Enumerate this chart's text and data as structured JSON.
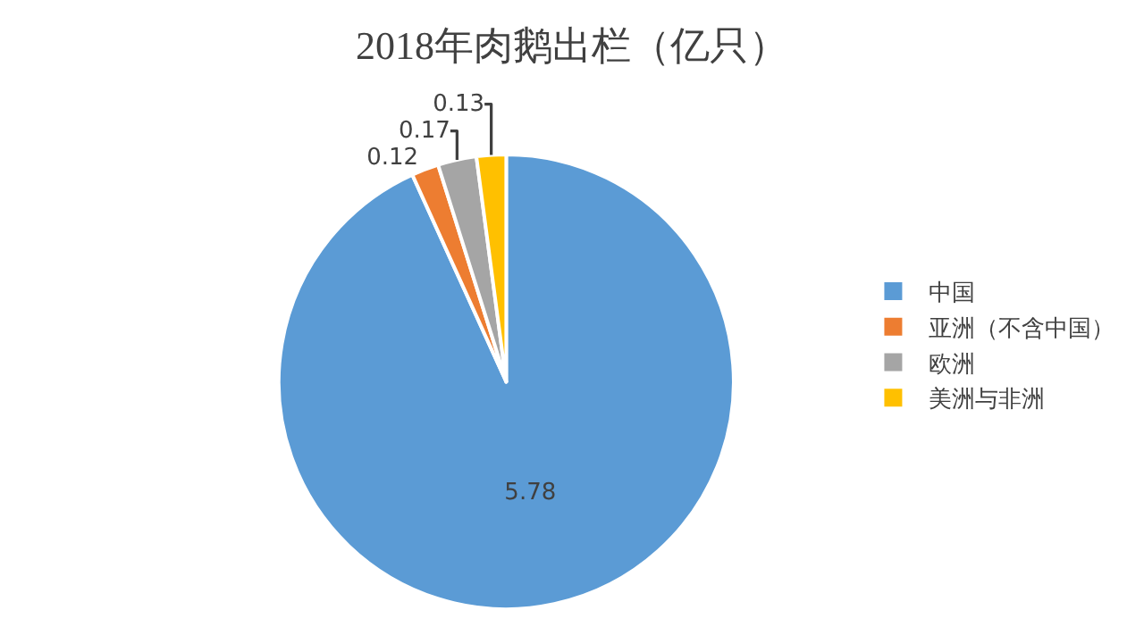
{
  "chart_data": {
    "type": "pie",
    "title": "2018年肉鹅出栏（亿只）",
    "categories": [
      "中国",
      "亚洲（不含中国）",
      "欧洲",
      "美洲与非洲"
    ],
    "values": [
      5.78,
      0.12,
      0.17,
      0.13
    ],
    "colors": [
      "#5b9bd5",
      "#ed7d31",
      "#a5a5a5",
      "#ffc000"
    ],
    "data_labels": true,
    "legend": "right"
  }
}
